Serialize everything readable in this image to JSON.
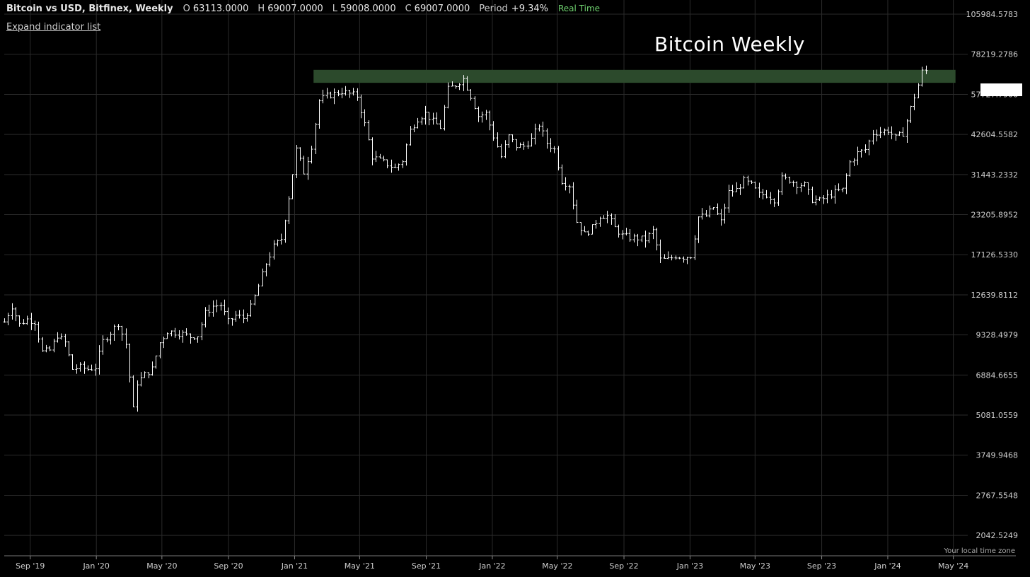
{
  "header": {
    "title": "Bitcoin vs USD, Bitfinex, Weekly",
    "open_label": "O",
    "open_value": "63113.0000",
    "high_label": "H",
    "high_value": "69007.0000",
    "low_label": "L",
    "low_value": "59008.0000",
    "close_label": "C",
    "close_value": "69007.0000",
    "period_label": "Period",
    "period_value": "+9.34%",
    "realtime_label": "Real Time"
  },
  "expand_label": "Expand indicator list",
  "annotation_text": "Bitcoin Weekly",
  "timezone_label": "Your local time zone",
  "colors": {
    "background": "#000000",
    "bars": "#ffffff",
    "grid": "#2a2a2a",
    "zone": "#2c4a2c",
    "realtime": "#6fd16f"
  },
  "chart_data": {
    "type": "ohlc",
    "title": "Bitcoin Weekly",
    "y_scale": "log",
    "y_ticks": [
      "105984.5783",
      "78219.2786",
      "57727.7906",
      "42604.5582",
      "31443.2332",
      "23205.8952",
      "17126.5330",
      "12639.8112",
      "9328.4979",
      "6884.6655",
      "5081.0559",
      "3749.9468",
      "2767.5548",
      "2042.5249"
    ],
    "x_ticks": [
      "Sep '19",
      "Jan '20",
      "May '20",
      "Sep '20",
      "Jan '21",
      "May '21",
      "Sep '21",
      "Jan '22",
      "May '22",
      "Sep '22",
      "Jan '23",
      "May '23",
      "Sep '23",
      "Jan '24",
      "May '24"
    ],
    "x_range": [
      "2019-07-15",
      "2024-05-25"
    ],
    "y_range": [
      1750,
      118000
    ],
    "zone": {
      "start": "2021-02-05",
      "end": "2024-05-05",
      "low": 63000,
      "high": 69500
    },
    "series_close": [
      [
        "2019-07-15",
        10300
      ],
      [
        "2019-07-29",
        11600
      ],
      [
        "2019-08-12",
        10100
      ],
      [
        "2019-08-26",
        10500
      ],
      [
        "2019-09-09",
        10300
      ],
      [
        "2019-09-23",
        8200
      ],
      [
        "2019-10-07",
        8300
      ],
      [
        "2019-10-21",
        9300
      ],
      [
        "2019-11-04",
        8800
      ],
      [
        "2019-11-18",
        7200
      ],
      [
        "2019-12-02",
        7300
      ],
      [
        "2019-12-16",
        7200
      ],
      [
        "2019-12-30",
        7300
      ],
      [
        "2020-01-13",
        8900
      ],
      [
        "2020-01-27",
        9500
      ],
      [
        "2020-02-10",
        10200
      ],
      [
        "2020-02-24",
        8700
      ],
      [
        "2020-03-09",
        5300
      ],
      [
        "2020-03-16",
        6500
      ],
      [
        "2020-03-30",
        6900
      ],
      [
        "2020-04-13",
        7200
      ],
      [
        "2020-04-27",
        8800
      ],
      [
        "2020-05-11",
        9600
      ],
      [
        "2020-05-25",
        9500
      ],
      [
        "2020-06-08",
        9400
      ],
      [
        "2020-06-22",
        9200
      ],
      [
        "2020-07-06",
        9300
      ],
      [
        "2020-07-20",
        11000
      ],
      [
        "2020-08-03",
        11600
      ],
      [
        "2020-08-17",
        11700
      ],
      [
        "2020-08-31",
        10300
      ],
      [
        "2020-09-14",
        10800
      ],
      [
        "2020-09-28",
        10600
      ],
      [
        "2020-10-12",
        11500
      ],
      [
        "2020-10-26",
        13500
      ],
      [
        "2020-11-09",
        16000
      ],
      [
        "2020-11-23",
        18200
      ],
      [
        "2020-12-07",
        19300
      ],
      [
        "2020-12-21",
        26500
      ],
      [
        "2021-01-04",
        38000
      ],
      [
        "2021-01-18",
        32000
      ],
      [
        "2021-02-01",
        39000
      ],
      [
        "2021-02-15",
        55000
      ],
      [
        "2021-03-01",
        57000
      ],
      [
        "2021-03-15",
        58000
      ],
      [
        "2021-03-29",
        59000
      ],
      [
        "2021-04-12",
        58000
      ],
      [
        "2021-04-26",
        57000
      ],
      [
        "2021-05-10",
        46000
      ],
      [
        "2021-05-24",
        36000
      ],
      [
        "2021-06-07",
        35000
      ],
      [
        "2021-06-21",
        34000
      ],
      [
        "2021-07-05",
        33000
      ],
      [
        "2021-07-19",
        35000
      ],
      [
        "2021-08-02",
        44000
      ],
      [
        "2021-08-16",
        48000
      ],
      [
        "2021-08-30",
        50000
      ],
      [
        "2021-09-13",
        47000
      ],
      [
        "2021-09-27",
        45000
      ],
      [
        "2021-10-11",
        60000
      ],
      [
        "2021-10-25",
        62000
      ],
      [
        "2021-11-08",
        65000
      ],
      [
        "2021-11-22",
        57000
      ],
      [
        "2021-12-06",
        49000
      ],
      [
        "2021-12-20",
        50000
      ],
      [
        "2022-01-03",
        42000
      ],
      [
        "2022-01-17",
        36000
      ],
      [
        "2022-01-31",
        42000
      ],
      [
        "2022-02-14",
        39000
      ],
      [
        "2022-02-28",
        39000
      ],
      [
        "2022-03-14",
        41000
      ],
      [
        "2022-03-28",
        46000
      ],
      [
        "2022-04-11",
        40000
      ],
      [
        "2022-04-25",
        38000
      ],
      [
        "2022-05-09",
        30000
      ],
      [
        "2022-05-23",
        29000
      ],
      [
        "2022-06-06",
        22000
      ],
      [
        "2022-06-20",
        20000
      ],
      [
        "2022-07-04",
        21000
      ],
      [
        "2022-07-18",
        23000
      ],
      [
        "2022-08-01",
        23000
      ],
      [
        "2022-08-15",
        21000
      ],
      [
        "2022-08-29",
        19800
      ],
      [
        "2022-09-12",
        19500
      ],
      [
        "2022-09-26",
        19400
      ],
      [
        "2022-10-10",
        19200
      ],
      [
        "2022-10-24",
        20500
      ],
      [
        "2022-11-07",
        16500
      ],
      [
        "2022-11-21",
        16500
      ],
      [
        "2022-12-05",
        17000
      ],
      [
        "2022-12-19",
        16800
      ],
      [
        "2023-01-02",
        17000
      ],
      [
        "2023-01-16",
        22800
      ],
      [
        "2023-01-30",
        23000
      ],
      [
        "2023-02-13",
        24500
      ],
      [
        "2023-02-27",
        22000
      ],
      [
        "2023-03-13",
        27500
      ],
      [
        "2023-03-27",
        28000
      ],
      [
        "2023-04-10",
        30000
      ],
      [
        "2023-04-24",
        29000
      ],
      [
        "2023-05-08",
        27000
      ],
      [
        "2023-05-22",
        27000
      ],
      [
        "2023-06-05",
        26000
      ],
      [
        "2023-06-19",
        30500
      ],
      [
        "2023-07-03",
        30200
      ],
      [
        "2023-07-17",
        29200
      ],
      [
        "2023-07-31",
        29000
      ],
      [
        "2023-08-14",
        26000
      ],
      [
        "2023-08-28",
        25800
      ],
      [
        "2023-09-11",
        26600
      ],
      [
        "2023-09-25",
        27500
      ],
      [
        "2023-10-09",
        28000
      ],
      [
        "2023-10-23",
        34500
      ],
      [
        "2023-11-06",
        37000
      ],
      [
        "2023-11-20",
        38000
      ],
      [
        "2023-12-04",
        43000
      ],
      [
        "2023-12-18",
        43500
      ],
      [
        "2024-01-01",
        44000
      ],
      [
        "2024-01-15",
        41500
      ],
      [
        "2024-01-29",
        43000
      ],
      [
        "2024-02-12",
        52000
      ],
      [
        "2024-02-26",
        62000
      ],
      [
        "2024-03-04",
        68500
      ],
      [
        "2024-03-11",
        69007
      ]
    ]
  }
}
